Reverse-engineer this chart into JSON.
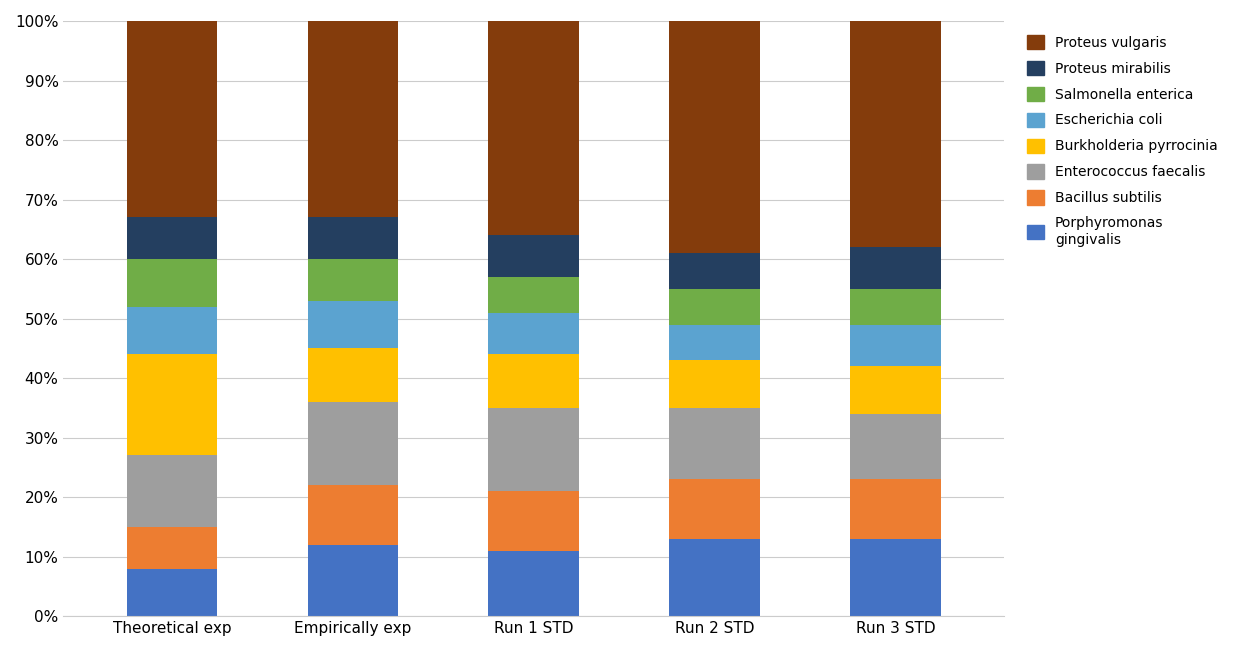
{
  "categories": [
    "Theoretical exp",
    "Empirically exp",
    "Run 1 STD",
    "Run 2 STD",
    "Run 3 STD"
  ],
  "species": [
    "Porphyromonas\ngingivalis",
    "Bacillus subtilis",
    "Enterococcus faecalis",
    "Burkholderia pyrrocinia",
    "Escherichia coli",
    "Salmonella enterica",
    "Proteus mirabilis",
    "Proteus vulgaris"
  ],
  "colors": [
    "#4472C4",
    "#ED7D31",
    "#9E9E9E",
    "#FFC000",
    "#5BA3D0",
    "#70AD47",
    "#243F60",
    "#843C0C"
  ],
  "data_bottom_to_top": {
    "Porphyromonas\ngingivalis": [
      0.08,
      0.12,
      0.11,
      0.13,
      0.13
    ],
    "Bacillus subtilis": [
      0.07,
      0.1,
      0.1,
      0.1,
      0.1
    ],
    "Enterococcus faecalis": [
      0.12,
      0.14,
      0.14,
      0.12,
      0.11
    ],
    "Burkholderia pyrrocinia": [
      0.17,
      0.09,
      0.09,
      0.08,
      0.08
    ],
    "Escherichia coli": [
      0.08,
      0.08,
      0.07,
      0.06,
      0.07
    ],
    "Salmonella enterica": [
      0.08,
      0.07,
      0.06,
      0.06,
      0.06
    ],
    "Proteus mirabilis": [
      0.07,
      0.07,
      0.07,
      0.06,
      0.07
    ],
    "Proteus vulgaris": [
      0.33,
      0.33,
      0.36,
      0.39,
      0.38
    ]
  },
  "background_color": "#FFFFFF",
  "ylim": [
    0,
    1.0
  ],
  "yticks": [
    0.0,
    0.1,
    0.2,
    0.3,
    0.4,
    0.5,
    0.6,
    0.7,
    0.8,
    0.9,
    1.0
  ],
  "ytick_labels": [
    "0%",
    "10%",
    "20%",
    "30%",
    "40%",
    "50%",
    "60%",
    "70%",
    "80%",
    "90%",
    "100%"
  ]
}
